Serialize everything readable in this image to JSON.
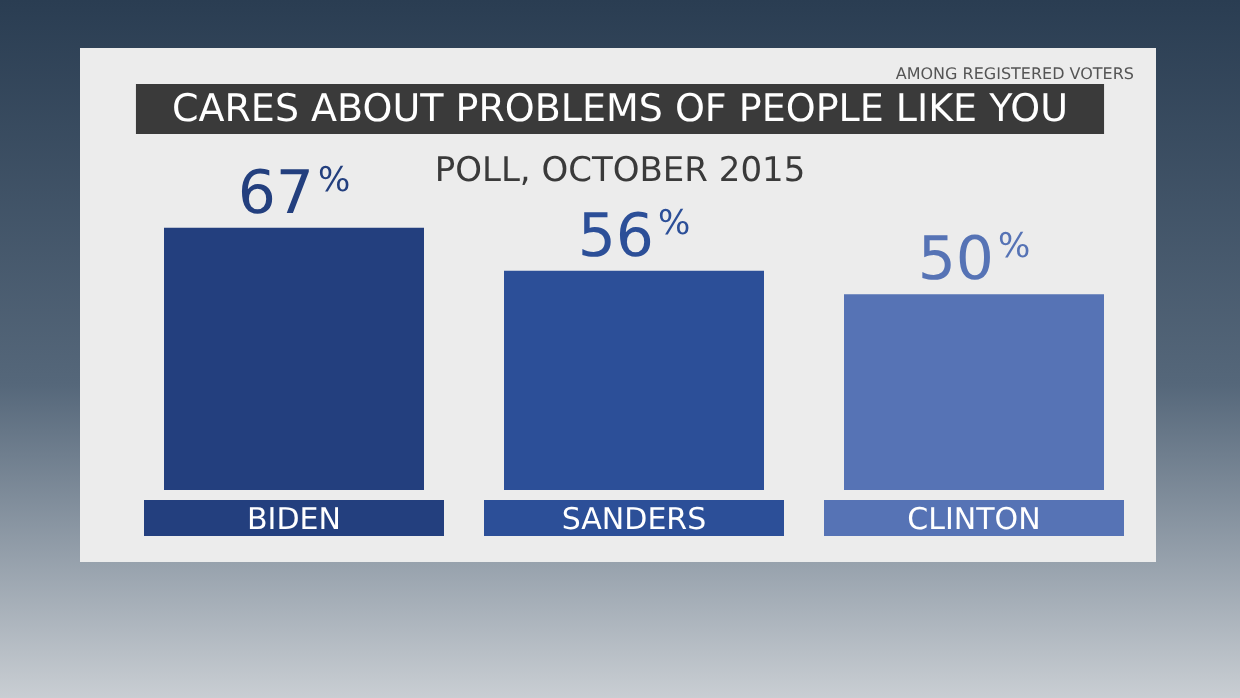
{
  "chart_data": {
    "type": "bar",
    "title": "CARES ABOUT PROBLEMS OF PEOPLE LIKE YOU",
    "subtitle": "POLL, OCTOBER 2015",
    "annotations": [
      "AMONG REGISTERED VOTERS"
    ],
    "categories": [
      "BIDEN",
      "SANDERS",
      "CLINTON"
    ],
    "values": [
      67,
      56,
      50
    ],
    "colors": [
      "#233f7e",
      "#2c4f98",
      "#5673b5"
    ],
    "value_labels": [
      "67%",
      "56%",
      "50%"
    ],
    "grid": false
  }
}
